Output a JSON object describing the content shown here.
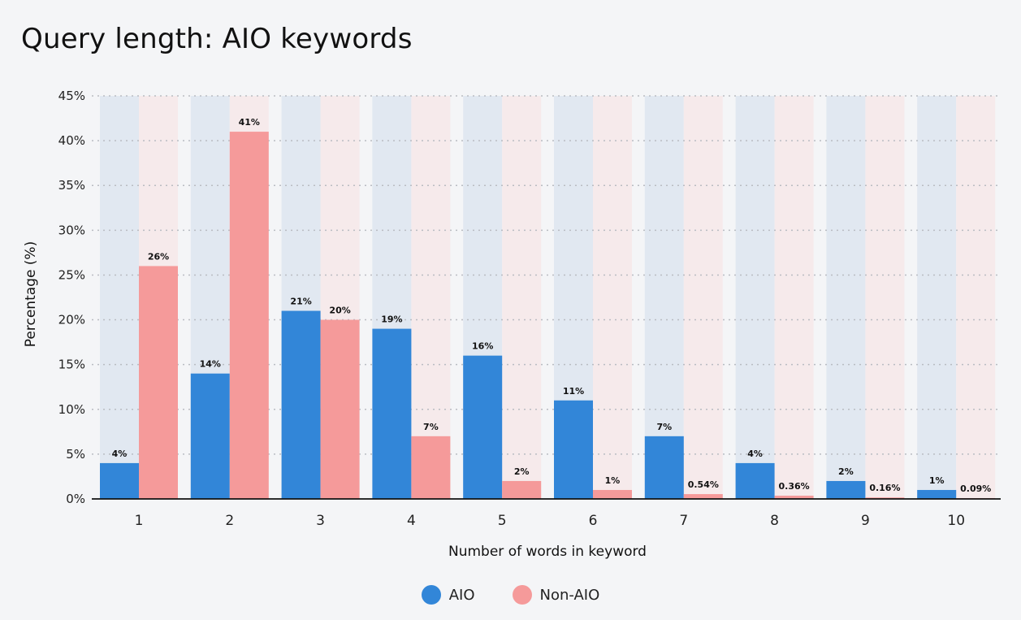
{
  "title": "Query length: AIO keywords",
  "chart_data": {
    "type": "bar",
    "title": "Query length: AIO keywords",
    "xlabel": "Number of words in keyword",
    "ylabel": "Percentage (%)",
    "categories": [
      "1",
      "2",
      "3",
      "4",
      "5",
      "6",
      "7",
      "8",
      "9",
      "10"
    ],
    "series": [
      {
        "name": "AIO",
        "color": "#3286d8",
        "background_color": "#e1e8f1",
        "values": [
          4,
          14,
          21,
          19,
          16,
          11,
          7,
          4,
          2,
          1
        ],
        "labels": [
          "4%",
          "14%",
          "21%",
          "19%",
          "16%",
          "11%",
          "7%",
          "4%",
          "2%",
          "1%"
        ]
      },
      {
        "name": "Non-AIO",
        "color": "#f59a9a",
        "background_color": "#f6eaeb",
        "values": [
          26,
          41,
          20,
          7,
          2,
          1,
          0.54,
          0.36,
          0.16,
          0.09
        ],
        "labels": [
          "26%",
          "41%",
          "20%",
          "7%",
          "2%",
          "1%",
          "0.54%",
          "0.36%",
          "0.16%",
          "0.09%"
        ]
      }
    ],
    "yticks": [
      0,
      5,
      10,
      15,
      20,
      25,
      30,
      35,
      40,
      45
    ],
    "ytick_labels": [
      "0%",
      "5%",
      "10%",
      "15%",
      "20%",
      "25%",
      "30%",
      "35%",
      "40%",
      "45%"
    ],
    "ylim": [
      0,
      45
    ],
    "grid": true,
    "legend_position": "bottom-center"
  }
}
